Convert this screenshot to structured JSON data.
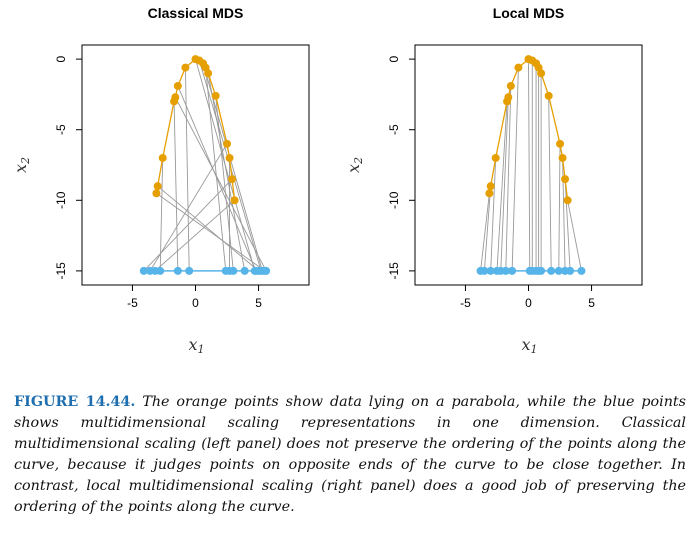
{
  "chart_data": [
    {
      "type": "scatter",
      "title": "Classical MDS",
      "xlabel": "x",
      "xlabel_sub": "1",
      "ylabel": "x",
      "ylabel_sub": "2",
      "xlim": [
        -9,
        9
      ],
      "ylim": [
        -16,
        1
      ],
      "xticks": [
        -5,
        0,
        5
      ],
      "yticks": [
        0,
        -5,
        -10,
        -15
      ],
      "colors": {
        "curve": "#e69f00",
        "embedding": "#56b4e9",
        "links": "#999999"
      },
      "parabola_points": [
        {
          "x": -3.1,
          "y": -9.5
        },
        {
          "x": -3.0,
          "y": -9.0
        },
        {
          "x": -2.6,
          "y": -7.0
        },
        {
          "x": -1.7,
          "y": -3.0
        },
        {
          "x": -1.6,
          "y": -2.7
        },
        {
          "x": -1.4,
          "y": -1.9
        },
        {
          "x": -0.8,
          "y": -0.6
        },
        {
          "x": 0.0,
          "y": 0.0
        },
        {
          "x": 0.3,
          "y": -0.1
        },
        {
          "x": 0.6,
          "y": -0.3
        },
        {
          "x": 0.8,
          "y": -0.6
        },
        {
          "x": 1.0,
          "y": -1.0
        },
        {
          "x": 1.6,
          "y": -2.6
        },
        {
          "x": 2.5,
          "y": -6.0
        },
        {
          "x": 2.7,
          "y": -7.0
        },
        {
          "x": 2.9,
          "y": -8.5
        },
        {
          "x": 3.1,
          "y": -10.0
        }
      ],
      "embedding_y": -15,
      "embedding_x": [
        5.5,
        5.0,
        -2.8,
        -1.4,
        5.6,
        4.8,
        -0.5,
        4.7,
        5.2,
        5.3,
        2.4,
        3.9,
        3.0,
        -3.6,
        2.7,
        -4.1,
        -3.2
      ]
    },
    {
      "type": "scatter",
      "title": "Local MDS",
      "xlabel": "x",
      "xlabel_sub": "1",
      "ylabel": "x",
      "ylabel_sub": "2",
      "xlim": [
        -9,
        9
      ],
      "ylim": [
        -16,
        1
      ],
      "xticks": [
        -5,
        0,
        5
      ],
      "yticks": [
        0,
        -5,
        -10,
        -15
      ],
      "colors": {
        "curve": "#e69f00",
        "embedding": "#56b4e9",
        "links": "#999999"
      },
      "parabola_points": [
        {
          "x": -3.1,
          "y": -9.5
        },
        {
          "x": -3.0,
          "y": -9.0
        },
        {
          "x": -2.6,
          "y": -7.0
        },
        {
          "x": -1.7,
          "y": -3.0
        },
        {
          "x": -1.6,
          "y": -2.7
        },
        {
          "x": -1.4,
          "y": -1.9
        },
        {
          "x": -0.8,
          "y": -0.6
        },
        {
          "x": 0.0,
          "y": 0.0
        },
        {
          "x": 0.3,
          "y": -0.1
        },
        {
          "x": 0.6,
          "y": -0.3
        },
        {
          "x": 0.8,
          "y": -0.6
        },
        {
          "x": 1.0,
          "y": -1.0
        },
        {
          "x": 1.6,
          "y": -2.6
        },
        {
          "x": 2.5,
          "y": -6.0
        },
        {
          "x": 2.7,
          "y": -7.0
        },
        {
          "x": 2.9,
          "y": -8.5
        },
        {
          "x": 3.1,
          "y": -10.0
        }
      ],
      "embedding_y": -15,
      "embedding_x": [
        -3.8,
        -3.5,
        -3.0,
        -2.5,
        -2.2,
        -1.8,
        -1.3,
        0.1,
        0.3,
        0.6,
        0.8,
        1.0,
        1.8,
        2.4,
        2.9,
        3.3,
        4.2
      ]
    }
  ],
  "caption": {
    "label": "FIGURE 14.44.",
    "text": "The orange points show data lying on a parabola, while the blue points shows multidimensional scaling representations in one dimension. Classical multidimensional scaling (left panel) does not preserve the ordering of the points along the curve, because it judges points on opposite ends of the curve to be close together. In contrast, local multidimensional scaling (right panel) does a good job of preserving the ordering of the points along the curve."
  }
}
